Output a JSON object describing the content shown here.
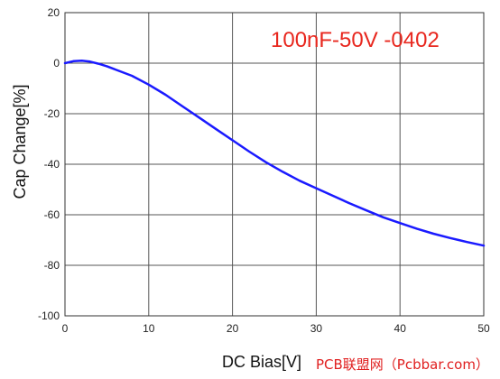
{
  "chart_data": {
    "type": "line",
    "title": "",
    "annotation": "100nF-50V -0402",
    "xlabel": "DC Bias[V]",
    "ylabel": "Cap Change[%]",
    "xlim": [
      0,
      50
    ],
    "ylim": [
      -100,
      20
    ],
    "xticks": [
      0,
      10,
      20,
      30,
      40,
      50
    ],
    "yticks": [
      20,
      0,
      -20,
      -40,
      -60,
      -80,
      -100
    ],
    "grid": true,
    "series": [
      {
        "color": "#1a1aff",
        "x": [
          0,
          1,
          2,
          3,
          4,
          5,
          6,
          8,
          10,
          12,
          14,
          16,
          18,
          20,
          22,
          24,
          26,
          28,
          30,
          32,
          34,
          36,
          38,
          40,
          42,
          44,
          46,
          48,
          50
        ],
        "values": [
          0,
          0.8,
          1,
          0.6,
          -0.2,
          -1.2,
          -2.5,
          -5,
          -8.5,
          -12.5,
          -17,
          -21.5,
          -26,
          -30.5,
          -35,
          -39.2,
          -43,
          -46.5,
          -49.5,
          -52.5,
          -55.5,
          -58.3,
          -61,
          -63.3,
          -65.5,
          -67.5,
          -69.2,
          -70.8,
          -72.2
        ]
      }
    ]
  },
  "watermark": "PCB联盟网（Pcbbar.com）"
}
